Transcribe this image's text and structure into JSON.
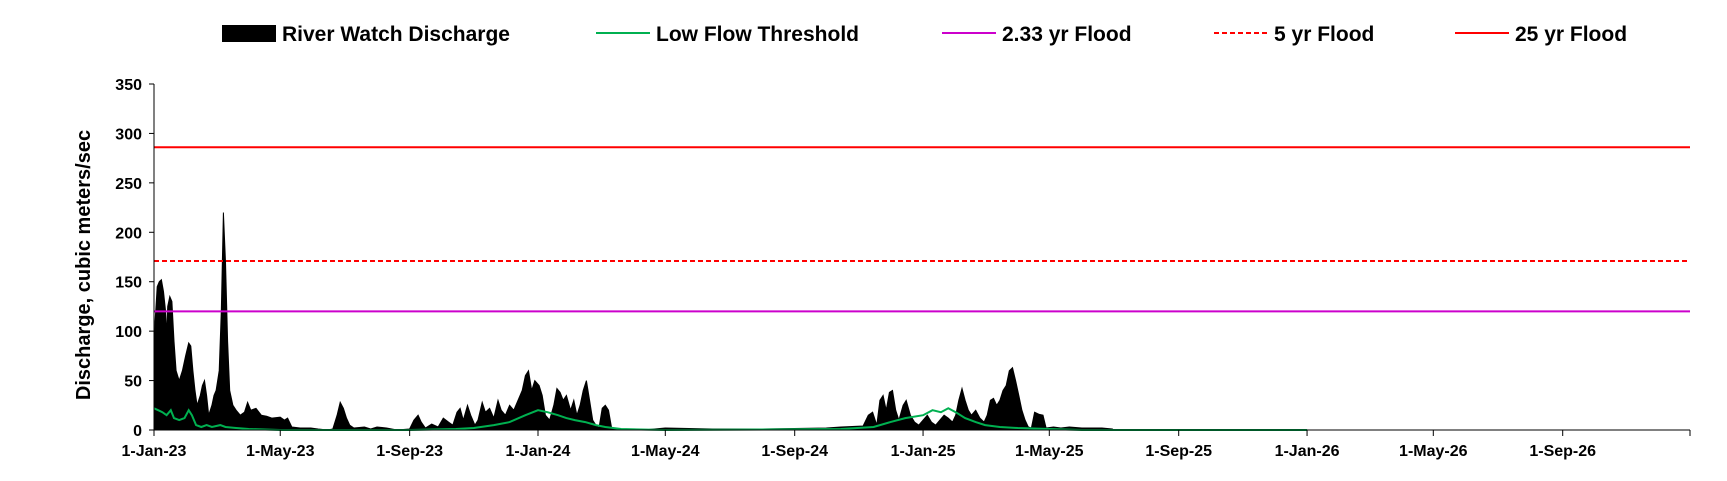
{
  "chart_data": {
    "type": "area",
    "title": "",
    "xlabel": "",
    "ylabel": "Discharge, cubic meters/sec",
    "ylim": [
      0,
      350
    ],
    "xlim": [
      "2023-01-01",
      "2026-12-31"
    ],
    "yticks": [
      0,
      50,
      100,
      150,
      200,
      250,
      300,
      350
    ],
    "xticks": [
      {
        "date": "2023-01-01",
        "label": "1-Jan-23"
      },
      {
        "date": "2023-05-01",
        "label": "1-May-23"
      },
      {
        "date": "2023-09-01",
        "label": "1-Sep-23"
      },
      {
        "date": "2024-01-01",
        "label": "1-Jan-24"
      },
      {
        "date": "2024-05-01",
        "label": "1-May-24"
      },
      {
        "date": "2024-09-01",
        "label": "1-Sep-24"
      },
      {
        "date": "2025-01-01",
        "label": "1-Jan-25"
      },
      {
        "date": "2025-05-01",
        "label": "1-May-25"
      },
      {
        "date": "2025-09-01",
        "label": "1-Sep-25"
      },
      {
        "date": "2026-01-01",
        "label": "1-Jan-26"
      },
      {
        "date": "2026-05-01",
        "label": "1-May-26"
      },
      {
        "date": "2026-09-01",
        "label": "1-Sep-26"
      }
    ],
    "grid": false,
    "legend_position": "top",
    "series": [
      {
        "name": "River Watch Discharge",
        "kind": "area",
        "color": "#000000",
        "points": [
          [
            "2023-01-01",
            0
          ],
          [
            "2023-01-02",
            110
          ],
          [
            "2023-01-04",
            145
          ],
          [
            "2023-01-06",
            150
          ],
          [
            "2023-01-08",
            152
          ],
          [
            "2023-01-10",
            140
          ],
          [
            "2023-01-12",
            120
          ],
          [
            "2023-01-13",
            95
          ],
          [
            "2023-01-14",
            125
          ],
          [
            "2023-01-16",
            135
          ],
          [
            "2023-01-18",
            130
          ],
          [
            "2023-01-20",
            90
          ],
          [
            "2023-01-22",
            60
          ],
          [
            "2023-01-25",
            50
          ],
          [
            "2023-01-28",
            60
          ],
          [
            "2023-01-31",
            75
          ],
          [
            "2023-02-03",
            88
          ],
          [
            "2023-02-05",
            85
          ],
          [
            "2023-02-07",
            60
          ],
          [
            "2023-02-09",
            40
          ],
          [
            "2023-02-11",
            25
          ],
          [
            "2023-02-14",
            35
          ],
          [
            "2023-02-16",
            45
          ],
          [
            "2023-02-18",
            50
          ],
          [
            "2023-02-20",
            35
          ],
          [
            "2023-02-22",
            15
          ],
          [
            "2023-02-25",
            25
          ],
          [
            "2023-02-27",
            35
          ],
          [
            "2023-03-01",
            40
          ],
          [
            "2023-03-04",
            60
          ],
          [
            "2023-03-06",
            120
          ],
          [
            "2023-03-08",
            220
          ],
          [
            "2023-03-10",
            170
          ],
          [
            "2023-03-12",
            90
          ],
          [
            "2023-03-14",
            40
          ],
          [
            "2023-03-17",
            25
          ],
          [
            "2023-03-20",
            20
          ],
          [
            "2023-03-24",
            15
          ],
          [
            "2023-03-28",
            18
          ],
          [
            "2023-03-31",
            28
          ],
          [
            "2023-04-03",
            20
          ],
          [
            "2023-04-08",
            22
          ],
          [
            "2023-04-13",
            15
          ],
          [
            "2023-04-18",
            14
          ],
          [
            "2023-04-23",
            12
          ],
          [
            "2023-05-01",
            13
          ],
          [
            "2023-05-05",
            10
          ],
          [
            "2023-05-08",
            12
          ],
          [
            "2023-05-12",
            3
          ],
          [
            "2023-05-20",
            2
          ],
          [
            "2023-05-30",
            2
          ],
          [
            "2023-06-06",
            1
          ],
          [
            "2023-06-15",
            0
          ],
          [
            "2023-06-20",
            1
          ],
          [
            "2023-06-24",
            15
          ],
          [
            "2023-06-27",
            28
          ],
          [
            "2023-06-30",
            22
          ],
          [
            "2023-07-03",
            12
          ],
          [
            "2023-07-06",
            5
          ],
          [
            "2023-07-10",
            2
          ],
          [
            "2023-07-20",
            3
          ],
          [
            "2023-07-26",
            1
          ],
          [
            "2023-08-01",
            3
          ],
          [
            "2023-08-10",
            2
          ],
          [
            "2023-08-20",
            0
          ],
          [
            "2023-09-01",
            1
          ],
          [
            "2023-09-05",
            10
          ],
          [
            "2023-09-09",
            15
          ],
          [
            "2023-09-12",
            8
          ],
          [
            "2023-09-16",
            2
          ],
          [
            "2023-09-22",
            6
          ],
          [
            "2023-09-28",
            3
          ],
          [
            "2023-10-03",
            12
          ],
          [
            "2023-10-08",
            8
          ],
          [
            "2023-10-12",
            5
          ],
          [
            "2023-10-16",
            18
          ],
          [
            "2023-10-19",
            22
          ],
          [
            "2023-10-22",
            10
          ],
          [
            "2023-10-26",
            25
          ],
          [
            "2023-10-29",
            15
          ],
          [
            "2023-11-02",
            5
          ],
          [
            "2023-11-05",
            10
          ],
          [
            "2023-11-09",
            28
          ],
          [
            "2023-11-12",
            18
          ],
          [
            "2023-11-16",
            22
          ],
          [
            "2023-11-20",
            12
          ],
          [
            "2023-11-24",
            30
          ],
          [
            "2023-11-27",
            20
          ],
          [
            "2023-12-01",
            15
          ],
          [
            "2023-12-05",
            25
          ],
          [
            "2023-12-09",
            20
          ],
          [
            "2023-12-13",
            30
          ],
          [
            "2023-12-17",
            40
          ],
          [
            "2023-12-20",
            55
          ],
          [
            "2023-12-23",
            60
          ],
          [
            "2023-12-26",
            40
          ],
          [
            "2023-12-29",
            50
          ],
          [
            "2024-01-02",
            45
          ],
          [
            "2024-01-05",
            35
          ],
          [
            "2024-01-08",
            15
          ],
          [
            "2024-01-12",
            10
          ],
          [
            "2024-01-16",
            25
          ],
          [
            "2024-01-19",
            42
          ],
          [
            "2024-01-22",
            38
          ],
          [
            "2024-01-25",
            30
          ],
          [
            "2024-01-28",
            35
          ],
          [
            "2024-02-01",
            20
          ],
          [
            "2024-02-04",
            30
          ],
          [
            "2024-02-07",
            15
          ],
          [
            "2024-02-10",
            25
          ],
          [
            "2024-02-13",
            40
          ],
          [
            "2024-02-16",
            50
          ],
          [
            "2024-02-19",
            30
          ],
          [
            "2024-02-22",
            10
          ],
          [
            "2024-02-25",
            5
          ],
          [
            "2024-02-28",
            2
          ],
          [
            "2024-03-02",
            22
          ],
          [
            "2024-03-05",
            25
          ],
          [
            "2024-03-08",
            20
          ],
          [
            "2024-03-11",
            2
          ],
          [
            "2024-03-20",
            1
          ],
          [
            "2024-04-10",
            0
          ],
          [
            "2024-05-01",
            2
          ],
          [
            "2024-06-15",
            1
          ],
          [
            "2024-08-01",
            1
          ],
          [
            "2024-10-01",
            2
          ],
          [
            "2024-10-15",
            3
          ],
          [
            "2024-11-05",
            4
          ],
          [
            "2024-11-10",
            15
          ],
          [
            "2024-11-14",
            18
          ],
          [
            "2024-11-18",
            5
          ],
          [
            "2024-11-21",
            30
          ],
          [
            "2024-11-24",
            35
          ],
          [
            "2024-11-27",
            20
          ],
          [
            "2024-11-30",
            38
          ],
          [
            "2024-12-03",
            40
          ],
          [
            "2024-12-06",
            20
          ],
          [
            "2024-12-09",
            10
          ],
          [
            "2024-12-13",
            25
          ],
          [
            "2024-12-16",
            30
          ],
          [
            "2024-12-20",
            15
          ],
          [
            "2024-12-24",
            8
          ],
          [
            "2024-12-28",
            5
          ],
          [
            "2025-01-01",
            10
          ],
          [
            "2025-01-05",
            15
          ],
          [
            "2025-01-09",
            8
          ],
          [
            "2025-01-13",
            5
          ],
          [
            "2025-01-17",
            10
          ],
          [
            "2025-01-21",
            15
          ],
          [
            "2025-01-25",
            12
          ],
          [
            "2025-01-29",
            8
          ],
          [
            "2025-02-01",
            15
          ],
          [
            "2025-02-04",
            30
          ],
          [
            "2025-02-07",
            42
          ],
          [
            "2025-02-10",
            30
          ],
          [
            "2025-02-13",
            20
          ],
          [
            "2025-02-16",
            15
          ],
          [
            "2025-02-20",
            20
          ],
          [
            "2025-02-24",
            12
          ],
          [
            "2025-02-28",
            8
          ],
          [
            "2025-03-03",
            15
          ],
          [
            "2025-03-06",
            30
          ],
          [
            "2025-03-09",
            32
          ],
          [
            "2025-03-12",
            25
          ],
          [
            "2025-03-15",
            30
          ],
          [
            "2025-03-18",
            40
          ],
          [
            "2025-03-21",
            45
          ],
          [
            "2025-03-24",
            60
          ],
          [
            "2025-03-27",
            63
          ],
          [
            "2025-03-30",
            50
          ],
          [
            "2025-04-02",
            35
          ],
          [
            "2025-04-05",
            20
          ],
          [
            "2025-04-08",
            10
          ],
          [
            "2025-04-11",
            3
          ],
          [
            "2025-04-14",
            2
          ],
          [
            "2025-04-17",
            18
          ],
          [
            "2025-04-21",
            16
          ],
          [
            "2025-04-25",
            15
          ],
          [
            "2025-04-28",
            2
          ],
          [
            "2025-05-05",
            3
          ],
          [
            "2025-05-12",
            2
          ],
          [
            "2025-05-20",
            3
          ],
          [
            "2025-06-01",
            2
          ],
          [
            "2025-06-20",
            2
          ],
          [
            "2025-06-30",
            1
          ],
          [
            "2025-07-01",
            0
          ]
        ]
      },
      {
        "name": "Low Flow Threshold",
        "kind": "line",
        "color": "#00b050",
        "points": [
          [
            "2023-01-01",
            22
          ],
          [
            "2023-01-05",
            20
          ],
          [
            "2023-01-09",
            18
          ],
          [
            "2023-01-13",
            15
          ],
          [
            "2023-01-17",
            20
          ],
          [
            "2023-01-20",
            12
          ],
          [
            "2023-01-25",
            10
          ],
          [
            "2023-01-30",
            12
          ],
          [
            "2023-02-03",
            20
          ],
          [
            "2023-02-06",
            15
          ],
          [
            "2023-02-10",
            5
          ],
          [
            "2023-02-15",
            3
          ],
          [
            "2023-02-20",
            5
          ],
          [
            "2023-02-25",
            3
          ],
          [
            "2023-03-05",
            5
          ],
          [
            "2023-03-10",
            3
          ],
          [
            "2023-03-20",
            2
          ],
          [
            "2023-04-01",
            1
          ],
          [
            "2023-05-01",
            0
          ],
          [
            "2023-09-01",
            0
          ],
          [
            "2023-10-15",
            1
          ],
          [
            "2023-11-01",
            2
          ],
          [
            "2023-11-20",
            5
          ],
          [
            "2023-12-05",
            8
          ],
          [
            "2023-12-20",
            15
          ],
          [
            "2024-01-01",
            20
          ],
          [
            "2024-01-10",
            18
          ],
          [
            "2024-01-20",
            15
          ],
          [
            "2024-01-28",
            12
          ],
          [
            "2024-02-05",
            10
          ],
          [
            "2024-02-15",
            8
          ],
          [
            "2024-02-25",
            5
          ],
          [
            "2024-03-05",
            3
          ],
          [
            "2024-03-20",
            1
          ],
          [
            "2024-05-01",
            0
          ],
          [
            "2024-10-15",
            1
          ],
          [
            "2024-11-15",
            3
          ],
          [
            "2024-12-01",
            8
          ],
          [
            "2024-12-15",
            12
          ],
          [
            "2025-01-01",
            15
          ],
          [
            "2025-01-10",
            20
          ],
          [
            "2025-01-18",
            18
          ],
          [
            "2025-01-25",
            22
          ],
          [
            "2025-02-01",
            18
          ],
          [
            "2025-02-10",
            12
          ],
          [
            "2025-02-20",
            8
          ],
          [
            "2025-03-01",
            5
          ],
          [
            "2025-03-15",
            3
          ],
          [
            "2025-04-01",
            2
          ],
          [
            "2025-05-01",
            1
          ],
          [
            "2025-06-01",
            0
          ],
          [
            "2026-01-01",
            0
          ]
        ]
      },
      {
        "name": "2.33 yr Flood",
        "kind": "hline",
        "color": "#cc00cc",
        "value": 120
      },
      {
        "name": "5 yr Flood",
        "kind": "hline",
        "color": "#ff0000",
        "dash": "dashed",
        "value": 171
      },
      {
        "name": "25 yr Flood",
        "kind": "hline",
        "color": "#ff0000",
        "value": 286
      }
    ]
  }
}
